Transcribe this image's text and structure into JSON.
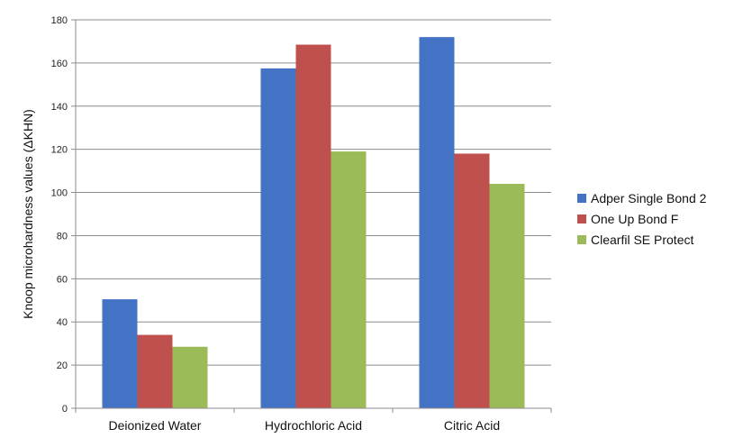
{
  "chart_data": {
    "type": "bar",
    "title": "",
    "xlabel": "",
    "ylabel": "Knoop microhardness values (ΔKHN)",
    "ylim": [
      0,
      180
    ],
    "yticks": [
      0,
      20,
      40,
      60,
      80,
      100,
      120,
      140,
      160,
      180
    ],
    "grid": true,
    "legend_position": "right",
    "categories": [
      "Deionized Water",
      "Hydrochloric Acid",
      "Citric Acid"
    ],
    "series": [
      {
        "name": "Adper Single Bond 2",
        "color": "#4472C4",
        "values": [
          50.5,
          157.5,
          172
        ]
      },
      {
        "name": "One Up Bond F",
        "color": "#C0504D",
        "values": [
          34,
          168.5,
          118
        ]
      },
      {
        "name": "Clearfil SE Protect",
        "color": "#9BBB59",
        "values": [
          28.5,
          119,
          104
        ]
      }
    ]
  }
}
